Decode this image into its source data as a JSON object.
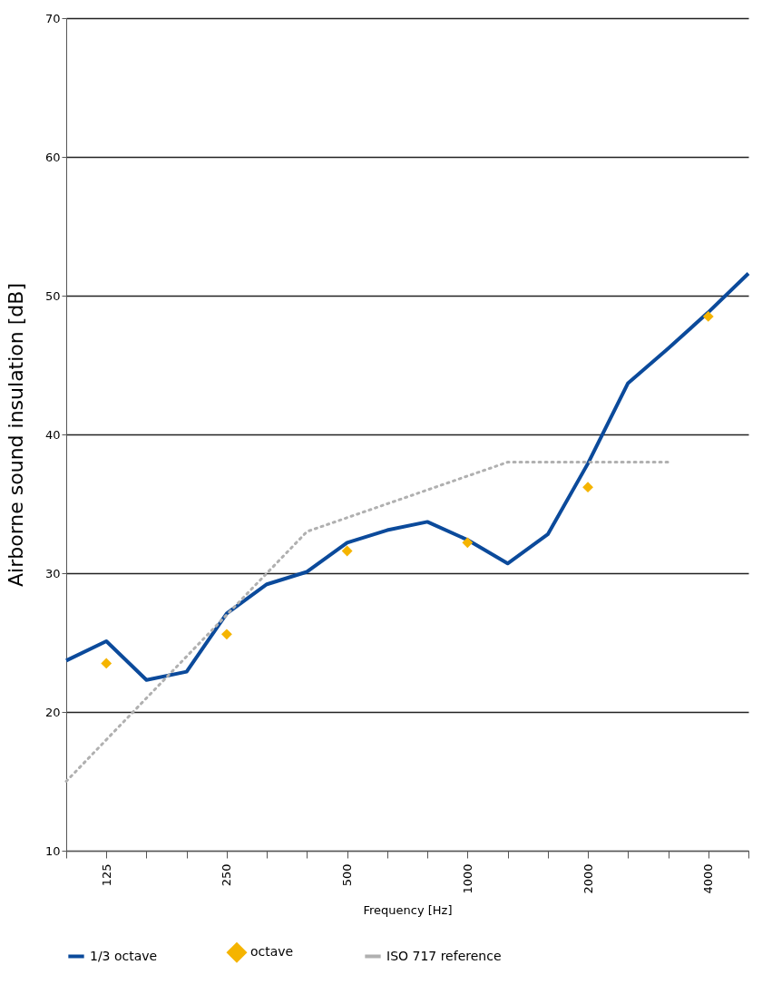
{
  "chart_data": {
    "type": "line",
    "xlabel": "Frequency [Hz]",
    "ylabel": "Airborne sound insulation [dB]",
    "categories": [
      null,
      "125",
      null,
      null,
      "250",
      null,
      null,
      "500",
      null,
      null,
      "1000",
      null,
      null,
      "2000",
      null,
      null,
      "4000",
      null
    ],
    "ylim": [
      10,
      70
    ],
    "yticks": [
      10,
      20,
      30,
      40,
      50,
      60,
      70
    ],
    "grid": "y",
    "legend": "bottom",
    "series": [
      {
        "name": "1/3 octave",
        "color": "#0b4a9b",
        "values": [
          23.7,
          25.1,
          22.3,
          22.9,
          27.1,
          29.2,
          30.1,
          32.2,
          33.1,
          33.7,
          32.4,
          30.7,
          32.8,
          37.9,
          43.7,
          46.2,
          48.8,
          51.6
        ]
      },
      {
        "name": "octave",
        "type": "scatter",
        "marker": "diamond",
        "color": "#f5b400",
        "values": [
          null,
          23.5,
          null,
          null,
          25.6,
          null,
          null,
          31.6,
          null,
          null,
          32.2,
          null,
          null,
          36.2,
          null,
          null,
          48.5,
          null
        ]
      },
      {
        "name": "ISO 717 reference",
        "color": "#b0b0b0",
        "line_style": "dotted",
        "values": [
          15,
          18,
          21,
          24,
          27,
          30,
          33,
          34,
          35,
          36,
          37,
          38,
          38,
          38,
          38,
          38,
          null,
          null
        ]
      }
    ]
  }
}
